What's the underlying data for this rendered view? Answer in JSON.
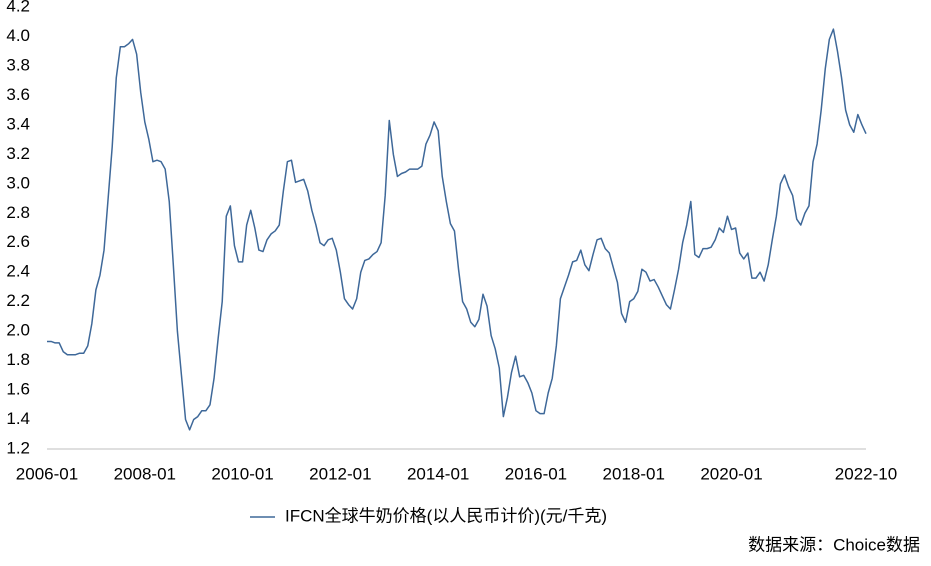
{
  "chart_data": {
    "type": "line",
    "categories": [
      "2006-01",
      null,
      null,
      null,
      null,
      null,
      null,
      null,
      null,
      null,
      null,
      null,
      null,
      null,
      null,
      null,
      null,
      null,
      null,
      null,
      null,
      null,
      null,
      null,
      "2008-01",
      null,
      null,
      null,
      null,
      null,
      null,
      null,
      null,
      null,
      null,
      null,
      null,
      null,
      null,
      null,
      null,
      null,
      null,
      null,
      null,
      null,
      null,
      null,
      "2010-01",
      null,
      null,
      null,
      null,
      null,
      null,
      null,
      null,
      null,
      null,
      null,
      null,
      null,
      null,
      null,
      null,
      null,
      null,
      null,
      null,
      null,
      null,
      null,
      "2012-01",
      null,
      null,
      null,
      null,
      null,
      null,
      null,
      null,
      null,
      null,
      null,
      null,
      null,
      null,
      null,
      null,
      null,
      null,
      null,
      null,
      null,
      null,
      null,
      "2014-01",
      null,
      null,
      null,
      null,
      null,
      null,
      null,
      null,
      null,
      null,
      null,
      null,
      null,
      null,
      null,
      null,
      null,
      null,
      null,
      null,
      null,
      null,
      null,
      "2016-01",
      null,
      null,
      null,
      null,
      null,
      null,
      null,
      null,
      null,
      null,
      null,
      null,
      null,
      null,
      null,
      null,
      null,
      null,
      null,
      null,
      null,
      null,
      null,
      "2018-01",
      null,
      null,
      null,
      null,
      null,
      null,
      null,
      null,
      null,
      null,
      null,
      null,
      null,
      null,
      null,
      null,
      null,
      null,
      null,
      null,
      null,
      null,
      null,
      "2020-01",
      null,
      null,
      null,
      null,
      null,
      null,
      null,
      null,
      null,
      null,
      null,
      null,
      null,
      null,
      null,
      null,
      null,
      null,
      null,
      null,
      null,
      null,
      null,
      null,
      null,
      null,
      null,
      null,
      null,
      null,
      null,
      null,
      "2022-10"
    ],
    "series": [
      {
        "name": "IFCN全球牛奶价格(以人民币计价)(元/千克)",
        "color": "#3e6899",
        "values": [
          1.93,
          1.93,
          1.92,
          1.92,
          1.86,
          1.84,
          1.84,
          1.84,
          1.85,
          1.85,
          1.9,
          2.05,
          2.28,
          2.38,
          2.55,
          2.9,
          3.25,
          3.72,
          3.93,
          3.93,
          3.95,
          3.98,
          3.88,
          3.62,
          3.42,
          3.3,
          3.15,
          3.16,
          3.15,
          3.1,
          2.88,
          2.45,
          2.0,
          1.7,
          1.4,
          1.33,
          1.4,
          1.42,
          1.46,
          1.46,
          1.5,
          1.68,
          1.95,
          2.2,
          2.78,
          2.85,
          2.58,
          2.47,
          2.47,
          2.72,
          2.82,
          2.7,
          2.55,
          2.54,
          2.62,
          2.66,
          2.68,
          2.72,
          2.95,
          3.15,
          3.16,
          3.01,
          3.02,
          3.03,
          2.95,
          2.82,
          2.72,
          2.6,
          2.58,
          2.62,
          2.63,
          2.55,
          2.4,
          2.22,
          2.18,
          2.15,
          2.22,
          2.4,
          2.48,
          2.49,
          2.52,
          2.54,
          2.6,
          2.92,
          3.43,
          3.2,
          3.05,
          3.07,
          3.08,
          3.1,
          3.1,
          3.1,
          3.12,
          3.27,
          3.33,
          3.42,
          3.36,
          3.05,
          2.88,
          2.73,
          2.68,
          2.42,
          2.2,
          2.15,
          2.06,
          2.03,
          2.08,
          2.25,
          2.17,
          1.97,
          1.88,
          1.75,
          1.42,
          1.55,
          1.72,
          1.83,
          1.69,
          1.7,
          1.65,
          1.58,
          1.46,
          1.44,
          1.44,
          1.58,
          1.68,
          1.9,
          2.22,
          2.3,
          2.38,
          2.47,
          2.48,
          2.55,
          2.45,
          2.41,
          2.52,
          2.62,
          2.63,
          2.56,
          2.53,
          2.43,
          2.33,
          2.12,
          2.06,
          2.2,
          2.22,
          2.27,
          2.42,
          2.4,
          2.34,
          2.35,
          2.3,
          2.24,
          2.18,
          2.15,
          2.28,
          2.42,
          2.6,
          2.72,
          2.88,
          2.52,
          2.5,
          2.56,
          2.56,
          2.57,
          2.62,
          2.7,
          2.67,
          2.78,
          2.69,
          2.7,
          2.53,
          2.49,
          2.53,
          2.36,
          2.36,
          2.4,
          2.34,
          2.45,
          2.62,
          2.78,
          3.0,
          3.06,
          2.98,
          2.92,
          2.76,
          2.72,
          2.8,
          2.85,
          3.15,
          3.27,
          3.5,
          3.78,
          3.98,
          4.05,
          3.9,
          3.72,
          3.5,
          3.4,
          3.35,
          3.47,
          3.4,
          3.34
        ]
      }
    ],
    "ylim": [
      1.2,
      4.2
    ],
    "yticks": [
      1.2,
      1.4,
      1.6,
      1.8,
      {
        "value": 2,
        "label": "2.0"
      },
      2.2,
      2.4,
      2.6,
      2.8,
      {
        "value": 3,
        "label": "3.0"
      },
      3.2,
      3.4,
      3.6,
      3.8,
      {
        "value": 4,
        "label": "4.0"
      },
      4.2
    ],
    "source": "数据来源：Choice数据"
  }
}
